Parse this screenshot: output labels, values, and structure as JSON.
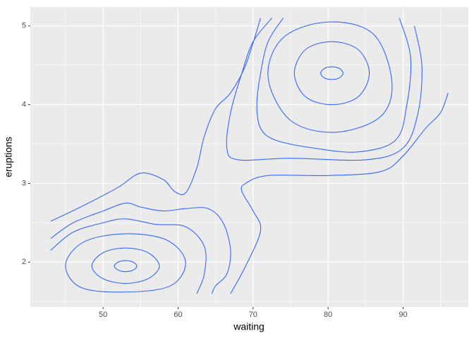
{
  "chart_data": {
    "type": "contour",
    "x_label": "waiting",
    "y_label": "eruptions",
    "xlim": [
      40.3,
      98.7
    ],
    "ylim": [
      1.43,
      5.24
    ],
    "xticks": [
      50,
      60,
      70,
      80,
      90
    ],
    "yticks": [
      2,
      3,
      4,
      5
    ],
    "x_minor_grid": [
      45,
      55,
      65,
      75,
      85,
      95
    ],
    "y_minor_grid": [
      1.5,
      2.5,
      3.5,
      4.5
    ],
    "grid": true,
    "color": "#3366ff",
    "series": [
      {
        "closed": true,
        "x": [
          51.5,
          52,
          53,
          54,
          54.5,
          54,
          53,
          52
        ],
        "values": [
          1.95,
          2.0,
          2.02,
          2.0,
          1.95,
          1.9,
          1.88,
          1.9
        ]
      },
      {
        "closed": true,
        "x": [
          48.5,
          50,
          53,
          56,
          57.5,
          56,
          53,
          50
        ],
        "values": [
          1.95,
          2.12,
          2.18,
          2.12,
          1.95,
          1.79,
          1.73,
          1.79
        ]
      },
      {
        "closed": true,
        "x": [
          45,
          47.5,
          53,
          58.5,
          61,
          59,
          53,
          47
        ],
        "values": [
          1.97,
          2.26,
          2.36,
          2.28,
          2.0,
          1.7,
          1.62,
          1.68
        ]
      },
      {
        "closed": false,
        "x": [
          43,
          46,
          50,
          53,
          57,
          61,
          63.5,
          63.5,
          62.5
        ],
        "values": [
          2.15,
          2.38,
          2.5,
          2.55,
          2.48,
          2.45,
          2.2,
          1.85,
          1.6
        ]
      },
      {
        "closed": false,
        "x": [
          43,
          46,
          50,
          53,
          55,
          58,
          61,
          64,
          66,
          67,
          66.5,
          65,
          64.5
        ],
        "values": [
          2.3,
          2.5,
          2.65,
          2.75,
          2.7,
          2.65,
          2.68,
          2.68,
          2.5,
          2.15,
          1.85,
          1.7,
          1.6
        ]
      },
      {
        "closed": false,
        "x": [
          43,
          47,
          52,
          55,
          58,
          59.5,
          61,
          62.5,
          63.5,
          65,
          67,
          69,
          71
        ],
        "values": [
          2.52,
          2.7,
          2.95,
          3.13,
          3.05,
          2.9,
          2.88,
          3.2,
          3.6,
          3.95,
          4.15,
          4.5,
          5.1
        ]
      },
      {
        "closed": false,
        "x": [
          67,
          69,
          71,
          70,
          68.5,
          69,
          72,
          80,
          87,
          90,
          93,
          95,
          96
        ],
        "values": [
          1.6,
          1.95,
          2.4,
          2.65,
          2.9,
          3.0,
          3.1,
          3.1,
          3.15,
          3.35,
          3.7,
          3.9,
          4.15
        ]
      },
      {
        "closed": true,
        "x": [
          79,
          79.5,
          80.5,
          81.5,
          82,
          81.5,
          80.5,
          79.5
        ],
        "values": [
          4.4,
          4.46,
          4.48,
          4.46,
          4.4,
          4.34,
          4.32,
          4.34
        ]
      },
      {
        "closed": true,
        "x": [
          75.5,
          77,
          80.5,
          84,
          85.5,
          84,
          80.5,
          77
        ],
        "values": [
          4.4,
          4.7,
          4.8,
          4.7,
          4.4,
          4.1,
          4.0,
          4.1
        ]
      },
      {
        "closed": true,
        "x": [
          72,
          74,
          80,
          86,
          88.5,
          87,
          81,
          75
        ],
        "values": [
          4.35,
          4.85,
          5.05,
          4.9,
          4.3,
          3.85,
          3.65,
          3.8
        ]
      },
      {
        "closed": false,
        "x": [
          74,
          72,
          71,
          70.5,
          71,
          73,
          78,
          84,
          89,
          90.5,
          91,
          89.5
        ],
        "values": [
          5.1,
          4.8,
          4.4,
          4.0,
          3.7,
          3.55,
          3.45,
          3.4,
          3.55,
          4.0,
          4.6,
          5.1
        ]
      },
      {
        "closed": false,
        "x": [
          72.5,
          70,
          68.5,
          67,
          66.5,
          68,
          75,
          85,
          90,
          92,
          92.5,
          91.5
        ],
        "values": [
          5.1,
          4.8,
          4.4,
          3.9,
          3.45,
          3.3,
          3.32,
          3.3,
          3.45,
          3.9,
          4.5,
          5.0
        ]
      }
    ]
  }
}
